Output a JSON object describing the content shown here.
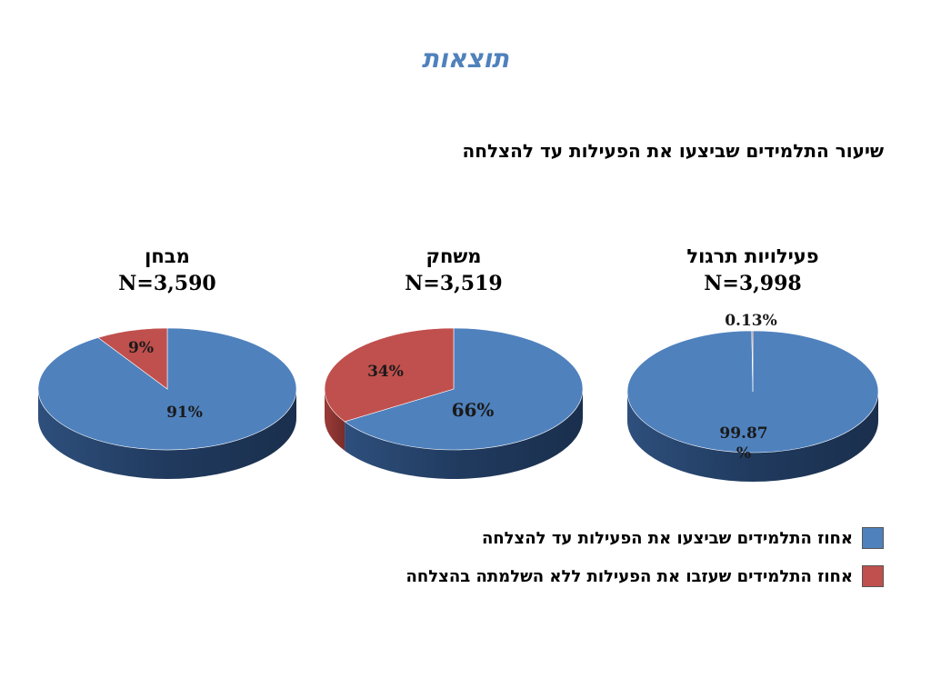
{
  "slide": {
    "title": "תוצאות",
    "subtitle": "שיעור התלמידים שביצעו את הפעילות עד להצלחה"
  },
  "colors": {
    "success": "#4f81bd",
    "abandoned": "#c0504d"
  },
  "legend": {
    "success_label": "אחוז התלמידים שביצעו את הפעילות עד להצלחה",
    "abandoned_label": "אחוז התלמידים שעזבו את הפעילות ללא השלמתה בהצלחה"
  },
  "chart_data": [
    {
      "type": "pie",
      "title": "מבחן",
      "n_label": "N=3,590",
      "slices": [
        {
          "name": "success",
          "value": 91,
          "label": "91%"
        },
        {
          "name": "abandoned",
          "value": 9,
          "label": "9%"
        }
      ]
    },
    {
      "type": "pie",
      "title": "משחק",
      "n_label": "N=3,519",
      "slices": [
        {
          "name": "success",
          "value": 66,
          "label": "66%"
        },
        {
          "name": "abandoned",
          "value": 34,
          "label": "34%"
        }
      ]
    },
    {
      "type": "pie",
      "title": "פעילויות תרגול",
      "n_label": "N=3,998",
      "slices": [
        {
          "name": "success",
          "value": 99.87,
          "label": "99.87%"
        },
        {
          "name": "abandoned",
          "value": 0.13,
          "label": "0.13%"
        }
      ]
    }
  ]
}
